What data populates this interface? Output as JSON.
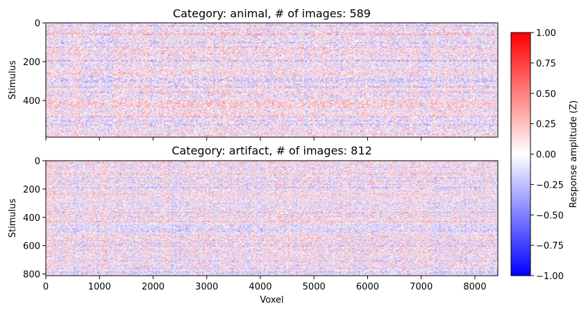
{
  "chart_data": [
    {
      "type": "heatmap",
      "title": "Category: animal, # of images: 589",
      "xlabel": "",
      "ylabel": "Stimulus",
      "xlim": [
        0,
        8428
      ],
      "ylim": [
        589,
        0
      ],
      "xticks": [
        0,
        1000,
        2000,
        3000,
        4000,
        5000,
        6000,
        7000,
        8000
      ],
      "xticklabels_visible": false,
      "yticks": [
        0,
        200,
        400
      ],
      "colormap": "bwr",
      "vmin": -1.0,
      "vmax": 1.0
    },
    {
      "type": "heatmap",
      "title": "Category: artifact, # of images: 812",
      "xlabel": "Voxel",
      "ylabel": "Stimulus",
      "xlim": [
        0,
        8428
      ],
      "ylim": [
        812,
        0
      ],
      "xticks": [
        0,
        1000,
        2000,
        3000,
        4000,
        5000,
        6000,
        7000,
        8000
      ],
      "xticklabels_visible": true,
      "yticks": [
        0,
        200,
        400,
        600,
        800
      ],
      "colormap": "bwr",
      "vmin": -1.0,
      "vmax": 1.0
    }
  ],
  "colorbar": {
    "label": "Response amplitude (Z)",
    "ticks": [
      1.0,
      0.75,
      0.5,
      0.25,
      0.0,
      -0.25,
      -0.5,
      -0.75,
      -1.0
    ],
    "tick_labels": [
      "1.00",
      "0.75",
      "0.50",
      "0.25",
      "0.00",
      "−0.25",
      "−0.50",
      "−0.75",
      "−1.00"
    ],
    "colors": {
      "max": "#ff0000",
      "mid": "#ffffff",
      "min": "#0000ff"
    }
  }
}
